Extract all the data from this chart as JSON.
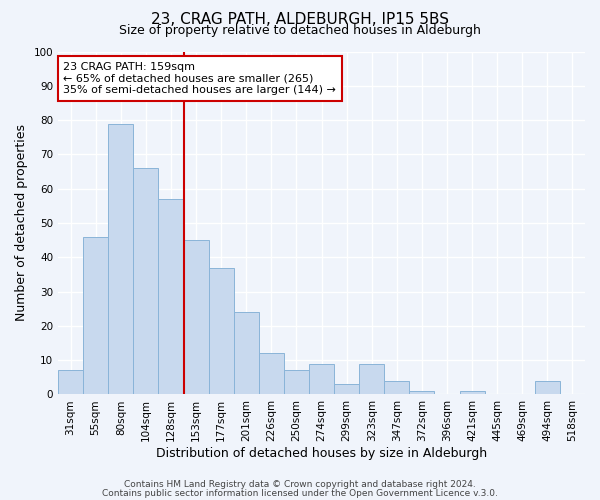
{
  "title": "23, CRAG PATH, ALDEBURGH, IP15 5BS",
  "subtitle": "Size of property relative to detached houses in Aldeburgh",
  "xlabel": "Distribution of detached houses by size in Aldeburgh",
  "ylabel": "Number of detached properties",
  "categories": [
    "31sqm",
    "55sqm",
    "80sqm",
    "104sqm",
    "128sqm",
    "153sqm",
    "177sqm",
    "201sqm",
    "226sqm",
    "250sqm",
    "274sqm",
    "299sqm",
    "323sqm",
    "347sqm",
    "372sqm",
    "396sqm",
    "421sqm",
    "445sqm",
    "469sqm",
    "494sqm",
    "518sqm"
  ],
  "values": [
    7,
    46,
    79,
    66,
    57,
    45,
    37,
    24,
    12,
    7,
    9,
    3,
    9,
    4,
    1,
    0,
    1,
    0,
    0,
    4,
    0
  ],
  "bar_color": "#c8d9ee",
  "bar_edge_color": "#8ab4d8",
  "vline_x_index": 5,
  "vline_color": "#cc0000",
  "annotation_box_text": "23 CRAG PATH: 159sqm\n← 65% of detached houses are smaller (265)\n35% of semi-detached houses are larger (144) →",
  "annotation_box_edge_color": "#cc0000",
  "ylim": [
    0,
    100
  ],
  "yticks": [
    0,
    10,
    20,
    30,
    40,
    50,
    60,
    70,
    80,
    90,
    100
  ],
  "footer_line1": "Contains HM Land Registry data © Crown copyright and database right 2024.",
  "footer_line2": "Contains public sector information licensed under the Open Government Licence v.3.0.",
  "bg_color": "#f0f4fb",
  "grid_color": "#e8ecf5",
  "title_fontsize": 11,
  "subtitle_fontsize": 9,
  "axis_label_fontsize": 9,
  "tick_fontsize": 7.5,
  "footer_fontsize": 6.5
}
